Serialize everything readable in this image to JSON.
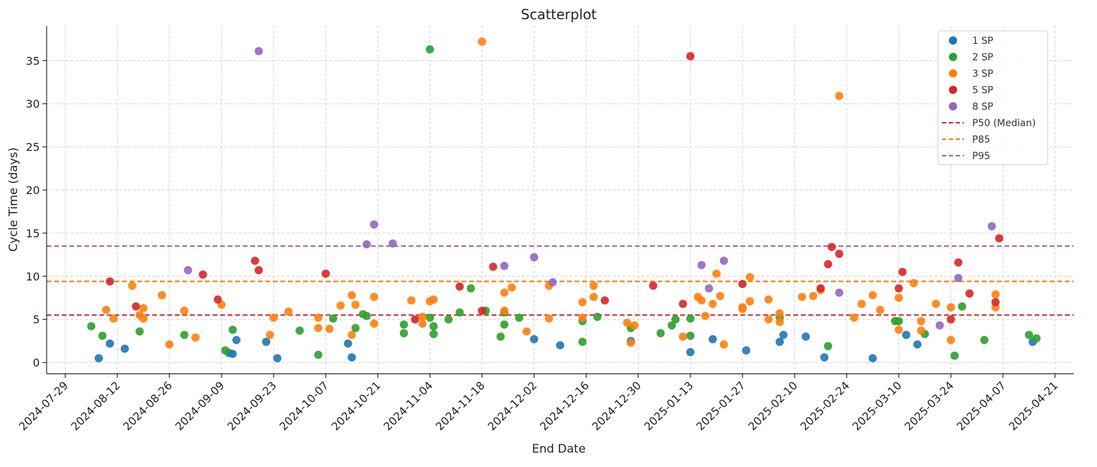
{
  "chart_data": {
    "type": "scatter",
    "title": "Scatterplot",
    "xlabel": "End Date",
    "ylabel": "Cycle Time (days)",
    "x_ticks": [
      "2024-07-29",
      "2024-08-12",
      "2024-08-26",
      "2024-09-09",
      "2024-09-23",
      "2024-10-07",
      "2024-10-21",
      "2024-11-04",
      "2024-11-18",
      "2024-12-02",
      "2024-12-16",
      "2024-12-30",
      "2025-01-13",
      "2025-01-27",
      "2025-02-10",
      "2025-02-24",
      "2025-03-10",
      "2025-03-24",
      "2025-04-07",
      "2025-04-21"
    ],
    "xlim": [
      "2024-07-24",
      "2025-04-26"
    ],
    "ylim": [
      -1.3,
      39
    ],
    "y_ticks": [
      0,
      5,
      10,
      15,
      20,
      25,
      30,
      35
    ],
    "grid": true,
    "legend_position": "top-right",
    "series": [
      {
        "name": "1 SP",
        "color": "#1f77b4",
        "points": [
          [
            "2024-08-07",
            0.5
          ],
          [
            "2024-08-10",
            2.2
          ],
          [
            "2024-08-14",
            1.6
          ],
          [
            "2024-09-11",
            1.1
          ],
          [
            "2024-09-12",
            1.0
          ],
          [
            "2024-09-13",
            2.6
          ],
          [
            "2024-09-21",
            2.4
          ],
          [
            "2024-09-24",
            0.5
          ],
          [
            "2024-10-13",
            2.2
          ],
          [
            "2024-10-14",
            0.6
          ],
          [
            "2024-12-02",
            2.7
          ],
          [
            "2024-12-09",
            2.0
          ],
          [
            "2024-12-28",
            2.5
          ],
          [
            "2025-01-13",
            1.2
          ],
          [
            "2025-01-19",
            2.7
          ],
          [
            "2025-01-28",
            1.4
          ],
          [
            "2025-02-06",
            2.4
          ],
          [
            "2025-02-07",
            3.2
          ],
          [
            "2025-02-13",
            3.0
          ],
          [
            "2025-02-18",
            0.6
          ],
          [
            "2025-03-03",
            0.5
          ],
          [
            "2025-03-12",
            3.2
          ],
          [
            "2025-03-15",
            2.1
          ],
          [
            "2025-04-15",
            2.4
          ]
        ]
      },
      {
        "name": "2 SP",
        "color": "#2ca02c",
        "points": [
          [
            "2024-08-05",
            4.2
          ],
          [
            "2024-08-08",
            3.1
          ],
          [
            "2024-08-18",
            3.6
          ],
          [
            "2024-08-30",
            3.2
          ],
          [
            "2024-09-10",
            1.4
          ],
          [
            "2024-09-12",
            3.8
          ],
          [
            "2024-09-30",
            3.7
          ],
          [
            "2024-10-05",
            0.9
          ],
          [
            "2024-10-09",
            5.1
          ],
          [
            "2024-10-15",
            4.0
          ],
          [
            "2024-10-17",
            5.6
          ],
          [
            "2024-10-18",
            5.4
          ],
          [
            "2024-10-28",
            4.4
          ],
          [
            "2024-10-28",
            3.4
          ],
          [
            "2024-11-04",
            36.3
          ],
          [
            "2024-11-04",
            5.2
          ],
          [
            "2024-11-05",
            4.2
          ],
          [
            "2024-11-05",
            3.3
          ],
          [
            "2024-11-09",
            5.0
          ],
          [
            "2024-11-12",
            5.8
          ],
          [
            "2024-11-15",
            8.6
          ],
          [
            "2024-11-19",
            6.0
          ],
          [
            "2024-11-23",
            3.0
          ],
          [
            "2024-11-24",
            5.8
          ],
          [
            "2024-11-24",
            4.4
          ],
          [
            "2024-11-28",
            5.2
          ],
          [
            "2024-12-15",
            4.8
          ],
          [
            "2024-12-15",
            2.4
          ],
          [
            "2024-12-19",
            5.3
          ],
          [
            "2024-12-28",
            4.0
          ],
          [
            "2025-01-05",
            3.4
          ],
          [
            "2025-01-08",
            4.3
          ],
          [
            "2025-01-09",
            5.0
          ],
          [
            "2025-01-13",
            5.1
          ],
          [
            "2025-01-13",
            3.1
          ],
          [
            "2025-02-06",
            5.2
          ],
          [
            "2025-02-19",
            1.9
          ],
          [
            "2025-03-09",
            4.8
          ],
          [
            "2025-03-10",
            4.8
          ],
          [
            "2025-03-17",
            3.3
          ],
          [
            "2025-03-25",
            0.8
          ],
          [
            "2025-03-27",
            6.5
          ],
          [
            "2025-04-02",
            2.6
          ],
          [
            "2025-04-14",
            3.2
          ],
          [
            "2025-04-16",
            2.8
          ]
        ]
      },
      {
        "name": "3 SP",
        "color": "#ff7f0e",
        "points": [
          [
            "2024-08-09",
            6.1
          ],
          [
            "2024-08-11",
            5.1
          ],
          [
            "2024-08-16",
            8.9
          ],
          [
            "2024-08-18",
            5.5
          ],
          [
            "2024-08-19",
            6.3
          ],
          [
            "2024-08-19",
            5.1
          ],
          [
            "2024-08-24",
            7.8
          ],
          [
            "2024-08-26",
            2.1
          ],
          [
            "2024-08-30",
            6.0
          ],
          [
            "2024-09-02",
            2.9
          ],
          [
            "2024-09-09",
            6.7
          ],
          [
            "2024-09-22",
            3.2
          ],
          [
            "2024-09-23",
            5.2
          ],
          [
            "2024-09-27",
            5.9
          ],
          [
            "2024-10-05",
            5.2
          ],
          [
            "2024-10-05",
            4.0
          ],
          [
            "2024-10-08",
            3.9
          ],
          [
            "2024-10-11",
            6.6
          ],
          [
            "2024-10-14",
            7.8
          ],
          [
            "2024-10-14",
            3.2
          ],
          [
            "2024-10-15",
            6.7
          ],
          [
            "2024-10-20",
            7.6
          ],
          [
            "2024-10-20",
            4.5
          ],
          [
            "2024-10-30",
            7.2
          ],
          [
            "2024-11-02",
            5.3
          ],
          [
            "2024-11-02",
            4.5
          ],
          [
            "2024-11-04",
            7.1
          ],
          [
            "2024-11-05",
            7.3
          ],
          [
            "2024-11-18",
            37.2
          ],
          [
            "2024-11-24",
            8.1
          ],
          [
            "2024-11-24",
            6.0
          ],
          [
            "2024-11-26",
            8.7
          ],
          [
            "2024-11-30",
            3.6
          ],
          [
            "2024-12-06",
            8.9
          ],
          [
            "2024-12-06",
            5.1
          ],
          [
            "2024-12-15",
            7.0
          ],
          [
            "2024-12-15",
            5.2
          ],
          [
            "2024-12-18",
            8.9
          ],
          [
            "2024-12-18",
            7.6
          ],
          [
            "2024-12-27",
            4.6
          ],
          [
            "2024-12-28",
            2.3
          ],
          [
            "2024-12-29",
            4.3
          ],
          [
            "2025-01-11",
            3.0
          ],
          [
            "2025-01-15",
            7.6
          ],
          [
            "2025-01-16",
            7.2
          ],
          [
            "2025-01-17",
            5.4
          ],
          [
            "2025-01-19",
            6.8
          ],
          [
            "2025-01-20",
            10.3
          ],
          [
            "2025-01-21",
            7.7
          ],
          [
            "2025-01-22",
            2.1
          ],
          [
            "2025-01-27",
            6.4
          ],
          [
            "2025-01-27",
            6.2
          ],
          [
            "2025-01-29",
            9.9
          ],
          [
            "2025-01-29",
            7.1
          ],
          [
            "2025-02-03",
            7.3
          ],
          [
            "2025-02-03",
            5.0
          ],
          [
            "2025-02-06",
            5.7
          ],
          [
            "2025-02-06",
            4.7
          ],
          [
            "2025-02-12",
            7.6
          ],
          [
            "2025-02-15",
            7.7
          ],
          [
            "2025-02-17",
            8.4
          ],
          [
            "2025-02-22",
            30.9
          ],
          [
            "2025-02-26",
            5.2
          ],
          [
            "2025-02-28",
            6.8
          ],
          [
            "2025-03-03",
            7.8
          ],
          [
            "2025-03-05",
            6.1
          ],
          [
            "2025-03-10",
            7.5
          ],
          [
            "2025-03-10",
            3.8
          ],
          [
            "2025-03-14",
            9.2
          ],
          [
            "2025-03-16",
            4.8
          ],
          [
            "2025-03-16",
            3.7
          ],
          [
            "2025-03-20",
            6.8
          ],
          [
            "2025-03-24",
            6.4
          ],
          [
            "2025-03-24",
            2.6
          ],
          [
            "2025-04-05",
            7.9
          ],
          [
            "2025-04-05",
            6.4
          ]
        ]
      },
      {
        "name": "5 SP",
        "color": "#d62728",
        "points": [
          [
            "2024-08-10",
            9.4
          ],
          [
            "2024-08-17",
            6.5
          ],
          [
            "2024-09-04",
            10.2
          ],
          [
            "2024-09-08",
            7.3
          ],
          [
            "2024-09-18",
            11.8
          ],
          [
            "2024-09-19",
            10.7
          ],
          [
            "2024-10-07",
            10.3
          ],
          [
            "2024-10-31",
            5.0
          ],
          [
            "2024-11-12",
            8.8
          ],
          [
            "2024-11-18",
            6.0
          ],
          [
            "2024-11-21",
            11.1
          ],
          [
            "2024-12-21",
            7.2
          ],
          [
            "2025-01-03",
            8.9
          ],
          [
            "2025-01-11",
            6.8
          ],
          [
            "2025-01-13",
            35.5
          ],
          [
            "2025-01-27",
            9.1
          ],
          [
            "2025-02-17",
            8.6
          ],
          [
            "2025-02-19",
            11.4
          ],
          [
            "2025-02-20",
            13.4
          ],
          [
            "2025-02-22",
            12.6
          ],
          [
            "2025-03-10",
            8.6
          ],
          [
            "2025-03-11",
            10.5
          ],
          [
            "2025-03-24",
            5.0
          ],
          [
            "2025-03-26",
            11.6
          ],
          [
            "2025-03-29",
            8.0
          ],
          [
            "2025-04-05",
            7.0
          ],
          [
            "2025-04-06",
            14.4
          ]
        ]
      },
      {
        "name": "8 SP",
        "color": "#9467bd",
        "points": [
          [
            "2024-08-31",
            10.7
          ],
          [
            "2024-09-19",
            36.1
          ],
          [
            "2024-10-18",
            13.7
          ],
          [
            "2024-10-20",
            16.0
          ],
          [
            "2024-10-25",
            13.8
          ],
          [
            "2024-11-24",
            11.2
          ],
          [
            "2024-12-02",
            12.2
          ],
          [
            "2024-12-07",
            9.3
          ],
          [
            "2025-01-16",
            11.3
          ],
          [
            "2025-01-18",
            8.6
          ],
          [
            "2025-01-22",
            11.8
          ],
          [
            "2025-02-22",
            8.1
          ],
          [
            "2025-03-21",
            4.3
          ],
          [
            "2025-03-26",
            9.8
          ],
          [
            "2025-04-04",
            15.8
          ]
        ]
      }
    ],
    "reference_lines": [
      {
        "name": "P50 (Median)",
        "value": 5.5,
        "color": "#d62728"
      },
      {
        "name": "P85",
        "value": 9.4,
        "color": "#ff7f0e"
      },
      {
        "name": "P95",
        "value": 13.5,
        "color": "#9467bd"
      }
    ]
  }
}
